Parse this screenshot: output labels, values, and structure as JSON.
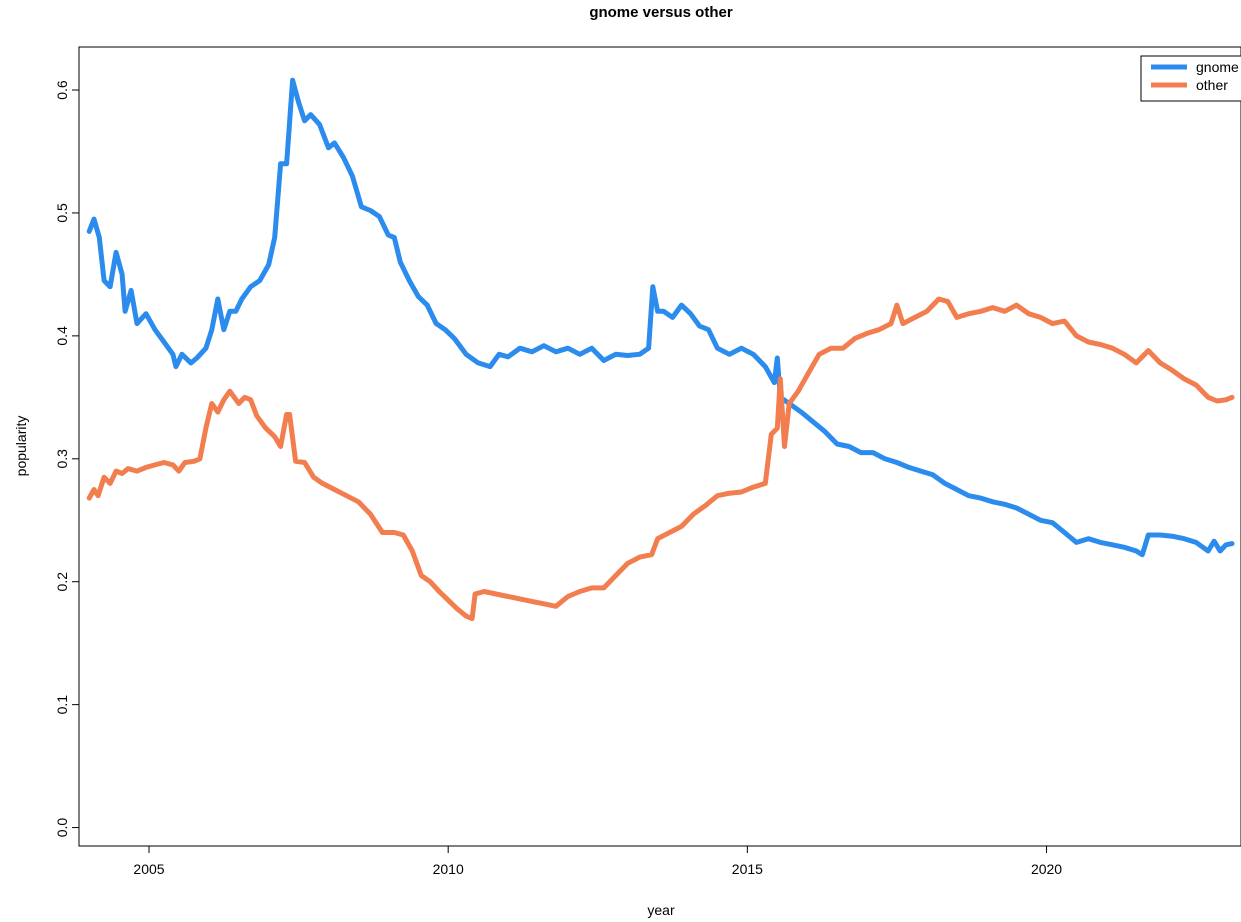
{
  "chart_data": {
    "type": "line",
    "title": "gnome versus other",
    "xlabel": "year",
    "ylabel": "popularity",
    "xlim": [
      2003.83,
      2023.25
    ],
    "ylim": [
      -0.015,
      0.635
    ],
    "x_ticks": [
      2005,
      2010,
      2015,
      2020
    ],
    "y_ticks": [
      0.0,
      0.1,
      0.2,
      0.3,
      0.4,
      0.5,
      0.6
    ],
    "y_tick_labels": [
      "0.0",
      "0.1",
      "0.2",
      "0.3",
      "0.4",
      "0.5",
      "0.6"
    ],
    "grid": false,
    "legend_position": "top-right",
    "series": [
      {
        "name": "gnome",
        "color": "#2B8CEE",
        "points": [
          [
            2004.0,
            0.485
          ],
          [
            2004.08,
            0.495
          ],
          [
            2004.17,
            0.48
          ],
          [
            2004.25,
            0.445
          ],
          [
            2004.35,
            0.44
          ],
          [
            2004.45,
            0.468
          ],
          [
            2004.55,
            0.45
          ],
          [
            2004.6,
            0.42
          ],
          [
            2004.7,
            0.437
          ],
          [
            2004.8,
            0.41
          ],
          [
            2004.95,
            0.418
          ],
          [
            2005.1,
            0.405
          ],
          [
            2005.25,
            0.395
          ],
          [
            2005.4,
            0.385
          ],
          [
            2005.45,
            0.375
          ],
          [
            2005.55,
            0.385
          ],
          [
            2005.7,
            0.378
          ],
          [
            2005.8,
            0.382
          ],
          [
            2005.95,
            0.39
          ],
          [
            2006.05,
            0.405
          ],
          [
            2006.15,
            0.43
          ],
          [
            2006.25,
            0.405
          ],
          [
            2006.35,
            0.42
          ],
          [
            2006.45,
            0.42
          ],
          [
            2006.55,
            0.43
          ],
          [
            2006.7,
            0.44
          ],
          [
            2006.85,
            0.445
          ],
          [
            2007.0,
            0.458
          ],
          [
            2007.1,
            0.48
          ],
          [
            2007.2,
            0.54
          ],
          [
            2007.3,
            0.54
          ],
          [
            2007.4,
            0.608
          ],
          [
            2007.5,
            0.59
          ],
          [
            2007.6,
            0.575
          ],
          [
            2007.7,
            0.58
          ],
          [
            2007.85,
            0.572
          ],
          [
            2008.0,
            0.553
          ],
          [
            2008.1,
            0.557
          ],
          [
            2008.25,
            0.545
          ],
          [
            2008.4,
            0.53
          ],
          [
            2008.55,
            0.505
          ],
          [
            2008.7,
            0.502
          ],
          [
            2008.85,
            0.497
          ],
          [
            2009.0,
            0.482
          ],
          [
            2009.1,
            0.48
          ],
          [
            2009.2,
            0.46
          ],
          [
            2009.35,
            0.445
          ],
          [
            2009.5,
            0.432
          ],
          [
            2009.65,
            0.425
          ],
          [
            2009.8,
            0.41
          ],
          [
            2009.95,
            0.405
          ],
          [
            2010.1,
            0.398
          ],
          [
            2010.3,
            0.385
          ],
          [
            2010.5,
            0.378
          ],
          [
            2010.7,
            0.375
          ],
          [
            2010.85,
            0.385
          ],
          [
            2011.0,
            0.383
          ],
          [
            2011.2,
            0.39
          ],
          [
            2011.4,
            0.387
          ],
          [
            2011.6,
            0.392
          ],
          [
            2011.8,
            0.387
          ],
          [
            2012.0,
            0.39
          ],
          [
            2012.2,
            0.385
          ],
          [
            2012.4,
            0.39
          ],
          [
            2012.6,
            0.38
          ],
          [
            2012.8,
            0.385
          ],
          [
            2013.0,
            0.384
          ],
          [
            2013.2,
            0.385
          ],
          [
            2013.35,
            0.39
          ],
          [
            2013.42,
            0.44
          ],
          [
            2013.5,
            0.42
          ],
          [
            2013.6,
            0.42
          ],
          [
            2013.75,
            0.415
          ],
          [
            2013.9,
            0.425
          ],
          [
            2014.05,
            0.418
          ],
          [
            2014.2,
            0.408
          ],
          [
            2014.35,
            0.405
          ],
          [
            2014.5,
            0.39
          ],
          [
            2014.7,
            0.385
          ],
          [
            2014.9,
            0.39
          ],
          [
            2015.1,
            0.385
          ],
          [
            2015.3,
            0.375
          ],
          [
            2015.45,
            0.362
          ],
          [
            2015.5,
            0.382
          ],
          [
            2015.55,
            0.35
          ],
          [
            2015.7,
            0.345
          ],
          [
            2015.9,
            0.338
          ],
          [
            2016.1,
            0.33
          ],
          [
            2016.3,
            0.322
          ],
          [
            2016.5,
            0.312
          ],
          [
            2016.7,
            0.31
          ],
          [
            2016.9,
            0.305
          ],
          [
            2017.1,
            0.305
          ],
          [
            2017.3,
            0.3
          ],
          [
            2017.5,
            0.297
          ],
          [
            2017.7,
            0.293
          ],
          [
            2017.9,
            0.29
          ],
          [
            2018.1,
            0.287
          ],
          [
            2018.3,
            0.28
          ],
          [
            2018.5,
            0.275
          ],
          [
            2018.7,
            0.27
          ],
          [
            2018.9,
            0.268
          ],
          [
            2019.1,
            0.265
          ],
          [
            2019.3,
            0.263
          ],
          [
            2019.5,
            0.26
          ],
          [
            2019.7,
            0.255
          ],
          [
            2019.9,
            0.25
          ],
          [
            2020.1,
            0.248
          ],
          [
            2020.3,
            0.24
          ],
          [
            2020.5,
            0.232
          ],
          [
            2020.7,
            0.235
          ],
          [
            2020.9,
            0.232
          ],
          [
            2021.1,
            0.23
          ],
          [
            2021.3,
            0.228
          ],
          [
            2021.5,
            0.225
          ],
          [
            2021.6,
            0.222
          ],
          [
            2021.7,
            0.238
          ],
          [
            2021.9,
            0.238
          ],
          [
            2022.1,
            0.237
          ],
          [
            2022.3,
            0.235
          ],
          [
            2022.5,
            0.232
          ],
          [
            2022.7,
            0.225
          ],
          [
            2022.8,
            0.233
          ],
          [
            2022.9,
            0.225
          ],
          [
            2023.0,
            0.23
          ],
          [
            2023.1,
            0.231
          ]
        ]
      },
      {
        "name": "other",
        "color": "#F27D4F",
        "points": [
          [
            2004.0,
            0.268
          ],
          [
            2004.08,
            0.275
          ],
          [
            2004.15,
            0.27
          ],
          [
            2004.25,
            0.285
          ],
          [
            2004.35,
            0.28
          ],
          [
            2004.45,
            0.29
          ],
          [
            2004.55,
            0.288
          ],
          [
            2004.65,
            0.292
          ],
          [
            2004.8,
            0.29
          ],
          [
            2004.95,
            0.293
          ],
          [
            2005.1,
            0.295
          ],
          [
            2005.25,
            0.297
          ],
          [
            2005.4,
            0.295
          ],
          [
            2005.5,
            0.29
          ],
          [
            2005.6,
            0.297
          ],
          [
            2005.75,
            0.298
          ],
          [
            2005.85,
            0.3
          ],
          [
            2005.95,
            0.325
          ],
          [
            2006.05,
            0.345
          ],
          [
            2006.15,
            0.338
          ],
          [
            2006.25,
            0.348
          ],
          [
            2006.35,
            0.355
          ],
          [
            2006.5,
            0.345
          ],
          [
            2006.6,
            0.35
          ],
          [
            2006.7,
            0.348
          ],
          [
            2006.8,
            0.335
          ],
          [
            2006.95,
            0.325
          ],
          [
            2007.1,
            0.318
          ],
          [
            2007.2,
            0.31
          ],
          [
            2007.3,
            0.336
          ],
          [
            2007.35,
            0.336
          ],
          [
            2007.45,
            0.298
          ],
          [
            2007.6,
            0.297
          ],
          [
            2007.75,
            0.285
          ],
          [
            2007.9,
            0.28
          ],
          [
            2008.1,
            0.275
          ],
          [
            2008.3,
            0.27
          ],
          [
            2008.5,
            0.265
          ],
          [
            2008.7,
            0.255
          ],
          [
            2008.9,
            0.24
          ],
          [
            2009.1,
            0.24
          ],
          [
            2009.25,
            0.238
          ],
          [
            2009.4,
            0.225
          ],
          [
            2009.55,
            0.205
          ],
          [
            2009.7,
            0.2
          ],
          [
            2009.85,
            0.192
          ],
          [
            2010.0,
            0.185
          ],
          [
            2010.15,
            0.178
          ],
          [
            2010.3,
            0.172
          ],
          [
            2010.4,
            0.17
          ],
          [
            2010.45,
            0.19
          ],
          [
            2010.6,
            0.192
          ],
          [
            2010.8,
            0.19
          ],
          [
            2011.0,
            0.188
          ],
          [
            2011.2,
            0.186
          ],
          [
            2011.4,
            0.184
          ],
          [
            2011.6,
            0.182
          ],
          [
            2011.8,
            0.18
          ],
          [
            2012.0,
            0.188
          ],
          [
            2012.2,
            0.192
          ],
          [
            2012.4,
            0.195
          ],
          [
            2012.6,
            0.195
          ],
          [
            2012.8,
            0.205
          ],
          [
            2013.0,
            0.215
          ],
          [
            2013.2,
            0.22
          ],
          [
            2013.4,
            0.222
          ],
          [
            2013.5,
            0.235
          ],
          [
            2013.7,
            0.24
          ],
          [
            2013.9,
            0.245
          ],
          [
            2014.1,
            0.255
          ],
          [
            2014.3,
            0.262
          ],
          [
            2014.5,
            0.27
          ],
          [
            2014.7,
            0.272
          ],
          [
            2014.9,
            0.273
          ],
          [
            2015.1,
            0.277
          ],
          [
            2015.3,
            0.28
          ],
          [
            2015.4,
            0.32
          ],
          [
            2015.5,
            0.325
          ],
          [
            2015.55,
            0.365
          ],
          [
            2015.62,
            0.31
          ],
          [
            2015.7,
            0.345
          ],
          [
            2015.85,
            0.355
          ],
          [
            2016.0,
            0.368
          ],
          [
            2016.2,
            0.385
          ],
          [
            2016.4,
            0.39
          ],
          [
            2016.6,
            0.39
          ],
          [
            2016.8,
            0.398
          ],
          [
            2017.0,
            0.402
          ],
          [
            2017.2,
            0.405
          ],
          [
            2017.4,
            0.41
          ],
          [
            2017.5,
            0.425
          ],
          [
            2017.6,
            0.41
          ],
          [
            2017.8,
            0.415
          ],
          [
            2018.0,
            0.42
          ],
          [
            2018.2,
            0.43
          ],
          [
            2018.35,
            0.428
          ],
          [
            2018.5,
            0.415
          ],
          [
            2018.7,
            0.418
          ],
          [
            2018.9,
            0.42
          ],
          [
            2019.1,
            0.423
          ],
          [
            2019.3,
            0.42
          ],
          [
            2019.5,
            0.425
          ],
          [
            2019.7,
            0.418
          ],
          [
            2019.9,
            0.415
          ],
          [
            2020.1,
            0.41
          ],
          [
            2020.3,
            0.412
          ],
          [
            2020.5,
            0.4
          ],
          [
            2020.7,
            0.395
          ],
          [
            2020.9,
            0.393
          ],
          [
            2021.1,
            0.39
          ],
          [
            2021.3,
            0.385
          ],
          [
            2021.5,
            0.378
          ],
          [
            2021.7,
            0.388
          ],
          [
            2021.9,
            0.378
          ],
          [
            2022.1,
            0.372
          ],
          [
            2022.3,
            0.365
          ],
          [
            2022.5,
            0.36
          ],
          [
            2022.7,
            0.35
          ],
          [
            2022.85,
            0.347
          ],
          [
            2023.0,
            0.348
          ],
          [
            2023.1,
            0.35
          ]
        ]
      }
    ]
  }
}
